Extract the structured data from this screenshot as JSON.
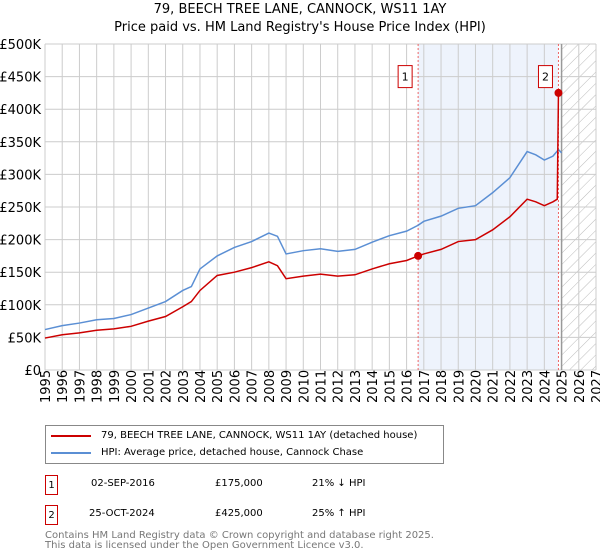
{
  "title": "79, BEECH TREE LANE, CANNOCK, WS11 1AY",
  "subtitle": "Price paid vs. HM Land Registry's House Price Index (HPI)",
  "chart_data": {
    "type": "line",
    "xlim": [
      1995,
      2027
    ],
    "ylim": [
      0,
      500000
    ],
    "y_ticks": [
      0,
      50000,
      100000,
      150000,
      200000,
      250000,
      300000,
      350000,
      400000,
      450000,
      500000
    ],
    "y_tick_labels": [
      "£0",
      "£50K",
      "£100K",
      "£150K",
      "£200K",
      "£250K",
      "£300K",
      "£350K",
      "£400K",
      "£450K",
      "£500K"
    ],
    "x_ticks": [
      "1995",
      "1996",
      "1997",
      "1998",
      "1999",
      "2000",
      "2001",
      "2002",
      "2003",
      "2004",
      "2005",
      "2006",
      "2007",
      "2008",
      "2009",
      "2010",
      "2011",
      "2012",
      "2013",
      "2014",
      "2015",
      "2016",
      "2017",
      "2018",
      "2019",
      "2020",
      "2021",
      "2022",
      "2023",
      "2024",
      "2025",
      "2026",
      "2027"
    ],
    "grid": true,
    "shaded_region": [
      2016.67,
      2024.82
    ],
    "forecast_hatch_from": 2025.0,
    "series": [
      {
        "name": "79, BEECH TREE LANE, CANNOCK, WS11 1AY (detached house)",
        "color": "#cc0000",
        "x": [
          1995,
          1996,
          1997,
          1998,
          1999,
          2000,
          2001,
          2002,
          2003,
          2003.5,
          2004,
          2005,
          2006,
          2007,
          2008,
          2008.5,
          2009,
          2010,
          2011,
          2012,
          2013,
          2014,
          2015,
          2016,
          2016.67,
          2017,
          2018,
          2019,
          2020,
          2021,
          2022,
          2023,
          2023.5,
          2024,
          2024.5,
          2024.75,
          2024.82
        ],
        "y": [
          49000,
          54000,
          57000,
          61000,
          63000,
          67000,
          75000,
          82000,
          97000,
          105000,
          122000,
          145000,
          150000,
          157000,
          166000,
          160000,
          140000,
          144000,
          147000,
          144000,
          146000,
          155000,
          163000,
          168000,
          175000,
          178000,
          185000,
          197000,
          200000,
          215000,
          235000,
          262000,
          258000,
          252000,
          258000,
          262000,
          425000
        ]
      },
      {
        "name": "HPI: Average price, detached house, Cannock Chase",
        "color": "#5b8fd4",
        "x": [
          1995,
          1996,
          1997,
          1998,
          1999,
          2000,
          2001,
          2002,
          2003,
          2003.5,
          2004,
          2005,
          2006,
          2007,
          2008,
          2008.5,
          2009,
          2010,
          2011,
          2012,
          2013,
          2014,
          2015,
          2016,
          2016.67,
          2017,
          2018,
          2019,
          2020,
          2021,
          2022,
          2023,
          2023.5,
          2024,
          2024.5,
          2024.82,
          2025
        ],
        "y": [
          62000,
          68000,
          72000,
          77000,
          79000,
          85000,
          95000,
          105000,
          122000,
          128000,
          155000,
          175000,
          188000,
          197000,
          210000,
          205000,
          178000,
          183000,
          186000,
          182000,
          185000,
          196000,
          206000,
          213000,
          222000,
          228000,
          236000,
          248000,
          252000,
          272000,
          295000,
          335000,
          330000,
          322000,
          328000,
          338000,
          333000
        ]
      }
    ],
    "sales": [
      {
        "label": "1",
        "x": 2016.67,
        "y": 175000,
        "date": "02-SEP-2016",
        "price": "£175,000",
        "hpi": "21% ↓ HPI"
      },
      {
        "label": "2",
        "x": 2024.82,
        "y": 425000,
        "date": "25-OCT-2024",
        "price": "£425,000",
        "hpi": "25% ↑ HPI"
      }
    ]
  },
  "footer": [
    "Contains HM Land Registry data © Crown copyright and database right 2025.",
    "This data is licensed under the Open Government Licence v3.0."
  ]
}
